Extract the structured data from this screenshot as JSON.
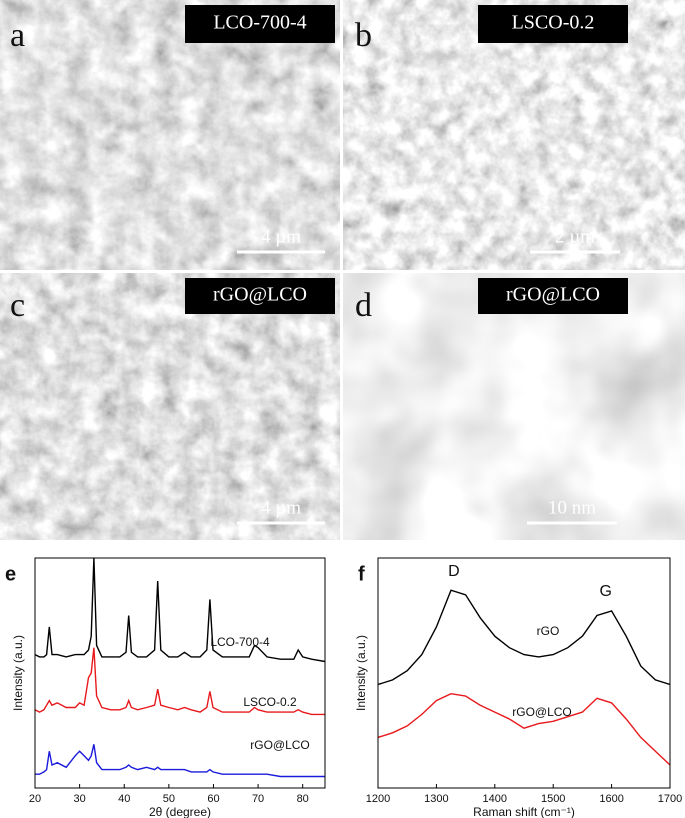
{
  "panels": [
    {
      "letter": "a",
      "label": "LCO-700-4",
      "scale_bar": "4 µm"
    },
    {
      "letter": "b",
      "label": "LSCO-0.2",
      "scale_bar": "2 µm"
    },
    {
      "letter": "c",
      "label": "rGO@LCO",
      "scale_bar": "4 µm"
    },
    {
      "letter": "d",
      "label": "rGO@LCO",
      "scale_bar": "10 nm"
    }
  ],
  "chart_data": [
    {
      "type": "line",
      "panel_letter": "e",
      "x_label": "2θ (degree)",
      "y_label": "Intensity (a.u.)",
      "xlim": [
        20,
        85
      ],
      "xticks": [
        20,
        30,
        40,
        50,
        60,
        70,
        80
      ],
      "ylim": [
        0,
        100
      ],
      "x": [
        20,
        21,
        22,
        22.6,
        23.2,
        23.8,
        25,
        27,
        29,
        30,
        31,
        32,
        32.6,
        33.2,
        33.8,
        35,
        37,
        39,
        40.4,
        41,
        41.6,
        43,
        45,
        46.8,
        47.5,
        48.2,
        50,
        52,
        53.5,
        55,
        57,
        58.5,
        59.2,
        59.9,
        62,
        65,
        68,
        69.2,
        70,
        72,
        75,
        78,
        79,
        80,
        82,
        85
      ],
      "series": [
        {
          "name": "LCO-700-4",
          "color": "#000000",
          "values": [
            58,
            57,
            57,
            58,
            70,
            58,
            58,
            57,
            58,
            58,
            58,
            60,
            66,
            100,
            62,
            57,
            57,
            57,
            59,
            75,
            59,
            57,
            57,
            60,
            90,
            60,
            57,
            57,
            59,
            57,
            57,
            60,
            82,
            60,
            57,
            57,
            57,
            62,
            61,
            57,
            56,
            56,
            60,
            57,
            56,
            55
          ]
        },
        {
          "name": "LSCO-0.2",
          "color": "#e8191c",
          "values": [
            34,
            33,
            34,
            36,
            38,
            36,
            37,
            35,
            35,
            37,
            36,
            48,
            50,
            61,
            40,
            35,
            34,
            34,
            35,
            38,
            35,
            34,
            35,
            36,
            43,
            36,
            35,
            34,
            35,
            34,
            33,
            35,
            42,
            35,
            33,
            33,
            33,
            35,
            34,
            33,
            33,
            33,
            34,
            33,
            32,
            32
          ]
        },
        {
          "name": "rGO@LCO",
          "color": "#1a1adc",
          "values": [
            6,
            6,
            7,
            8,
            16,
            10,
            11,
            9,
            14,
            16,
            14,
            12,
            14,
            19,
            11,
            8,
            8,
            8,
            9,
            10,
            9,
            8,
            9,
            8,
            9,
            8,
            8,
            8,
            8,
            7,
            7,
            7,
            8,
            7,
            6,
            6,
            6,
            6,
            6,
            6,
            5,
            5,
            5,
            5,
            5,
            5
          ]
        }
      ]
    },
    {
      "type": "line",
      "panel_letter": "f",
      "x_label": "Raman shift (cm⁻¹)",
      "y_label": "Intensity (a.u.)",
      "xlim": [
        1200,
        1700
      ],
      "xticks": [
        1200,
        1300,
        1400,
        1500,
        1600,
        1700
      ],
      "ylim": [
        0,
        100
      ],
      "x": [
        1200,
        1225,
        1250,
        1275,
        1300,
        1325,
        1350,
        1375,
        1400,
        1425,
        1450,
        1475,
        1500,
        1525,
        1550,
        1575,
        1600,
        1625,
        1650,
        1675,
        1700
      ],
      "annotations": [
        "D",
        "G"
      ],
      "series": [
        {
          "name": "rGO",
          "color": "#000000",
          "values": [
            45,
            47,
            51,
            58,
            70,
            86,
            84,
            74,
            66,
            61,
            58,
            57,
            58,
            61,
            66,
            75,
            77,
            66,
            53,
            47,
            45
          ]
        },
        {
          "name": "rGO@LCO",
          "color": "#e8191c",
          "values": [
            22,
            24,
            27,
            32,
            38,
            41,
            40,
            36,
            33,
            30,
            26,
            28,
            29,
            31,
            33,
            39,
            37,
            30,
            22,
            16,
            10
          ]
        }
      ]
    }
  ]
}
